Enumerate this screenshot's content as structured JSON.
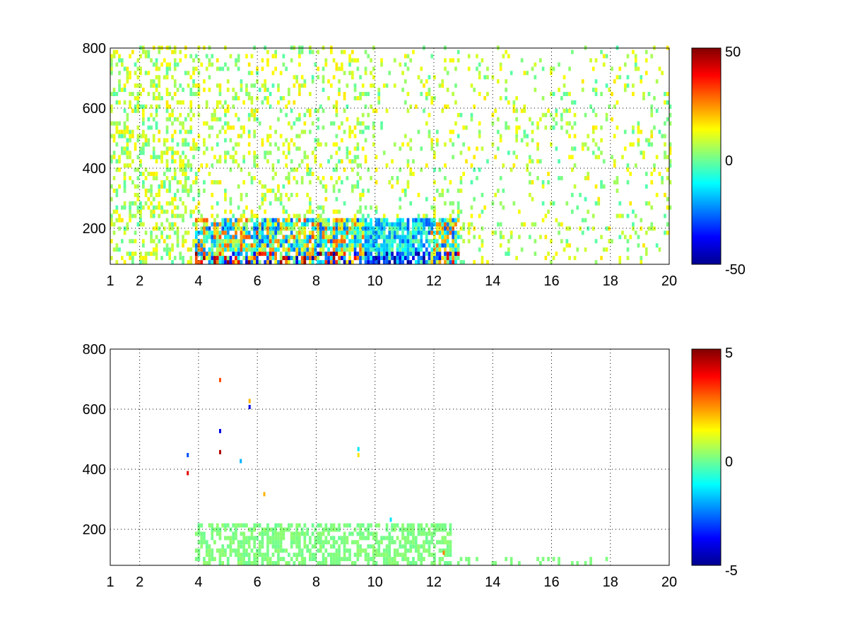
{
  "chart_data": [
    {
      "type": "heatmap",
      "x_ticks": [
        1,
        2,
        4,
        6,
        8,
        10,
        12,
        14,
        16,
        18,
        20
      ],
      "x_tick_labels": [
        "1",
        "2",
        "4",
        "6",
        "8",
        "10",
        "12",
        "14",
        "16",
        "18",
        "20"
      ],
      "y_ticks": [
        200,
        400,
        600,
        800
      ],
      "y_tick_labels": [
        "200",
        "400",
        "600",
        "800"
      ],
      "xlim": [
        1,
        20
      ],
      "ylim": [
        80,
        800
      ],
      "grid": true,
      "colormap": "jet",
      "colorbar": {
        "min": -50,
        "max": 50,
        "tick_labels": [
          "50",
          "0",
          "-50"
        ]
      },
      "description_of_values": "sparse scattered cells mostly near 0; strong positive (red) and negative (blue) blocks at y≈80–220 for x≈4–12"
    },
    {
      "type": "heatmap",
      "x_ticks": [
        1,
        2,
        4,
        6,
        8,
        10,
        12,
        14,
        16,
        18,
        20
      ],
      "x_tick_labels": [
        "1",
        "2",
        "4",
        "6",
        "8",
        "10",
        "12",
        "14",
        "16",
        "18",
        "20"
      ],
      "y_ticks": [
        200,
        400,
        600,
        800
      ],
      "y_tick_labels": [
        "200",
        "400",
        "600",
        "800"
      ],
      "xlim": [
        1,
        20
      ],
      "ylim": [
        80,
        800
      ],
      "grid": true,
      "colormap": "jet",
      "colorbar": {
        "min": -5,
        "max": 5,
        "tick_labels": [
          "5",
          "0",
          "-5"
        ]
      },
      "description_of_values": "nearly all cells ≈0 (green) concentrated at y≈80–220, x≈4–13; a few isolated colored cells near x≈3.6, 4.7, 5.4, 5.7, 9.4"
    }
  ]
}
